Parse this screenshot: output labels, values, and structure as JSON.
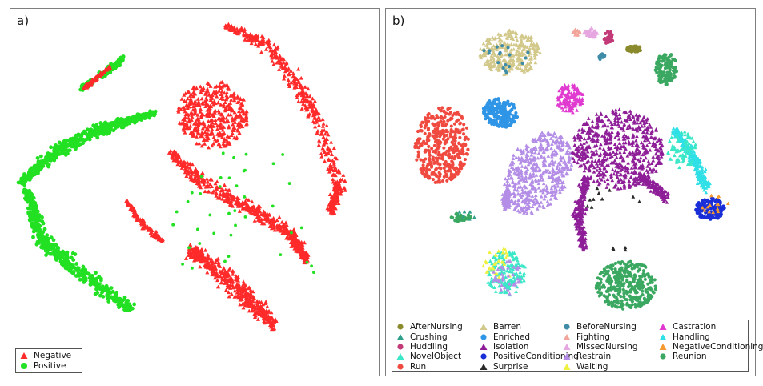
{
  "chart_data": [
    {
      "type": "scatter",
      "panel_label": "a)",
      "title": "",
      "xlabel": "",
      "ylabel": "",
      "grid": false,
      "legend_position": "bottom-left",
      "series": [
        {
          "name": "Negative",
          "marker": "triangle",
          "color": "#ff2a2a"
        },
        {
          "name": "Positive",
          "marker": "circle",
          "color": "#22e022"
        }
      ]
    },
    {
      "type": "scatter",
      "panel_label": "b)",
      "title": "",
      "xlabel": "",
      "ylabel": "",
      "grid": false,
      "legend_position": "bottom",
      "series": [
        {
          "name": "AfterNursing",
          "marker": "circle",
          "color": "#8b8b2e"
        },
        {
          "name": "Barren",
          "marker": "triangle",
          "color": "#d2c88a"
        },
        {
          "name": "BeforeNursing",
          "marker": "circle",
          "color": "#3f8ca8"
        },
        {
          "name": "Castration",
          "marker": "triangle",
          "color": "#e03ad0"
        },
        {
          "name": "Crushing",
          "marker": "triangle",
          "color": "#2e9f8a"
        },
        {
          "name": "Enriched",
          "marker": "circle",
          "color": "#2f95e6"
        },
        {
          "name": "Fighting",
          "marker": "triangle",
          "color": "#f2a59a"
        },
        {
          "name": "Handling",
          "marker": "triangle",
          "color": "#2fe0e6"
        },
        {
          "name": "Huddling",
          "marker": "circle",
          "color": "#c23a78"
        },
        {
          "name": "Isolation",
          "marker": "triangle",
          "color": "#8e1e98"
        },
        {
          "name": "MissedNursing",
          "marker": "triangle",
          "color": "#e6a6e0"
        },
        {
          "name": "NegativeConditioning",
          "marker": "triangle",
          "color": "#f59a30"
        },
        {
          "name": "NovelObject",
          "marker": "triangle",
          "color": "#3ae8c8"
        },
        {
          "name": "PositiveConditioning",
          "marker": "circle",
          "color": "#1a2ed8"
        },
        {
          "name": "Restrain",
          "marker": "triangle",
          "color": "#b48ee6"
        },
        {
          "name": "Reunion",
          "marker": "circle",
          "color": "#3aa860"
        },
        {
          "name": "Run",
          "marker": "circle",
          "color": "#f04a40"
        },
        {
          "name": "Surprise",
          "marker": "triangle",
          "color": "#2a2a2a"
        },
        {
          "name": "Waiting",
          "marker": "triangle",
          "color": "#f0f040"
        }
      ]
    }
  ]
}
